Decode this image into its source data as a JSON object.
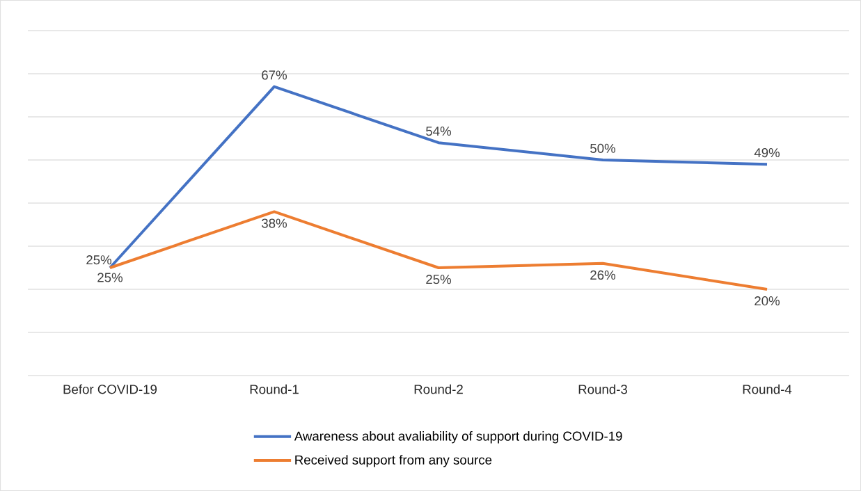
{
  "chart_data": {
    "type": "line",
    "categories": [
      "Befor COVID-19",
      "Round-1",
      "Round-2",
      "Round-3",
      "Round-4"
    ],
    "series": [
      {
        "name": "Awareness about avaliability of support during COVID-19",
        "color": "#4472c4",
        "values": [
          25,
          67,
          54,
          50,
          49
        ],
        "value_labels": [
          "25%",
          "67%",
          "54%",
          "50%",
          "49%"
        ]
      },
      {
        "name": "Received support from any source",
        "color": "#ed7d31",
        "values": [
          25,
          38,
          25,
          26,
          20
        ],
        "value_labels": [
          "25%",
          "38%",
          "25%",
          "26%",
          "20%"
        ]
      }
    ],
    "ylim": [
      0,
      80
    ],
    "yticks": [
      {
        "value": 0,
        "label": null
      },
      {
        "value": 10,
        "label": null
      },
      {
        "value": 20,
        "label": null
      },
      {
        "value": 30,
        "label": null
      },
      {
        "value": 40,
        "label": null
      },
      {
        "value": 50,
        "label": null
      },
      {
        "value": 60,
        "label": null
      },
      {
        "value": 70,
        "label": null
      },
      {
        "value": 80,
        "label": null
      }
    ],
    "tick_labels": "x",
    "grid": "y",
    "legend": "bottom",
    "marker": "none",
    "line_style": "solid"
  }
}
